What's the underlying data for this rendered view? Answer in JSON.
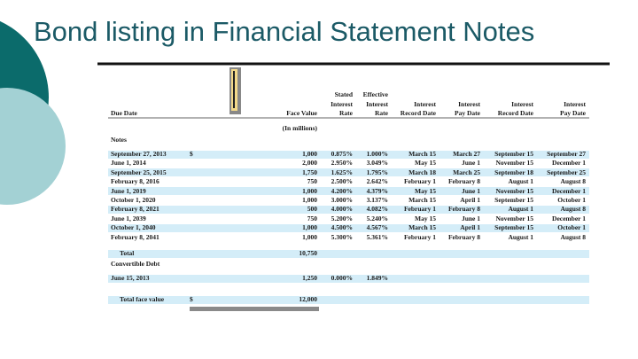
{
  "title": "Bond listing in Financial Statement Notes",
  "table": {
    "header": [
      [
        "Due Date"
      ],
      null,
      [
        "Face Value"
      ],
      [
        "Stated",
        "Interest",
        "Rate"
      ],
      [
        "Effective",
        "Interest",
        "Rate"
      ],
      [
        "Interest",
        "Record Date"
      ],
      [
        "Interest",
        "Pay Date"
      ],
      [
        "Interest",
        "Record Date"
      ],
      [
        "Interest",
        "Pay Date"
      ]
    ],
    "units": "(In millions)",
    "sections": [
      {
        "label": "Notes",
        "rows": [
          [
            "September 27, 2013",
            "$",
            "1,000",
            "0.875%",
            "1.000%",
            "March 15",
            "March 27",
            "September 15",
            "September 27"
          ],
          [
            "June 1, 2014",
            null,
            "2,000",
            "2.950%",
            "3.049%",
            "May 15",
            "June 1",
            "November 15",
            "December 1"
          ],
          [
            "September 25, 2015",
            null,
            "1,750",
            "1.625%",
            "1.795%",
            "March 18",
            "March 25",
            "September 18",
            "September 25"
          ],
          [
            "February 8, 2016",
            null,
            "750",
            "2.500%",
            "2.642%",
            "February 1",
            "February 8",
            "August 1",
            "August 8"
          ],
          [
            "June 1, 2019",
            null,
            "1,000",
            "4.200%",
            "4.379%",
            "May 15",
            "June 1",
            "November 15",
            "December 1"
          ],
          [
            "October 1, 2020",
            null,
            "1,000",
            "3.000%",
            "3.137%",
            "March 15",
            "April 1",
            "September 15",
            "October 1"
          ],
          [
            "February 8, 2021",
            null,
            "500",
            "4.000%",
            "4.082%",
            "February 1",
            "February 8",
            "August 1",
            "August 8"
          ],
          [
            "June 1, 2039",
            null,
            "750",
            "5.200%",
            "5.240%",
            "May 15",
            "June 1",
            "November 15",
            "December 1"
          ],
          [
            "October 1, 2040",
            null,
            "1,000",
            "4.500%",
            "4.567%",
            "March 15",
            "April 1",
            "September 15",
            "October 1"
          ],
          [
            "February 8, 2041",
            null,
            "1,000",
            "5.300%",
            "5.361%",
            "February 1",
            "February 8",
            "August 1",
            "August 8"
          ]
        ],
        "total": [
          "Total",
          null,
          "10,750"
        ]
      },
      {
        "label": "Convertible Debt",
        "rows": [
          [
            "June 15, 2013",
            null,
            "1,250",
            "0.000%",
            "1.849%"
          ]
        ]
      }
    ],
    "grand_total": [
      "Total face value",
      "$",
      "12,000"
    ]
  }
}
